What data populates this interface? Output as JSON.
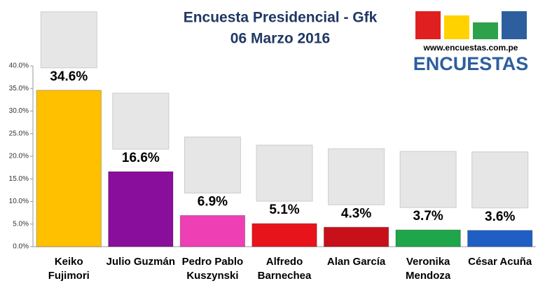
{
  "chart_data": {
    "type": "bar",
    "title": "Encuesta Presidencial - Gfk",
    "subtitle": "06 Marzo 2016",
    "logo": {
      "url": "www.encuestas.com.pe",
      "name": "ENCUESTAS"
    },
    "categories": [
      "Keiko Fujimori",
      "Julio Guzmán",
      "Pedro Pablo Kuszynski",
      "Alfredo Barnechea",
      "Alan García",
      "Veronika Mendoza",
      "César Acuña"
    ],
    "values": [
      34.6,
      16.6,
      6.9,
      5.1,
      4.3,
      3.7,
      3.6
    ],
    "value_labels": [
      "34.6%",
      "16.6%",
      "6.9%",
      "5.1%",
      "4.3%",
      "3.7%",
      "3.6%"
    ],
    "colors": [
      "#ffc000",
      "#8a0e9c",
      "#ee3fb4",
      "#e8141c",
      "#c8101a",
      "#1fa54a",
      "#1f5fc4"
    ],
    "ylim": [
      0,
      40
    ],
    "yticks": [
      {
        "value": 0,
        "label": "0.0%"
      },
      {
        "value": 5,
        "label": "5.0%"
      },
      {
        "value": 10,
        "label": "10.0%"
      },
      {
        "value": 15,
        "label": "15.0%"
      },
      {
        "value": 20,
        "label": "20.0%"
      },
      {
        "value": 25,
        "label": "25.0%"
      },
      {
        "value": 30,
        "label": "30.0%"
      },
      {
        "value": 35,
        "label": "35.0%"
      },
      {
        "value": 40,
        "label": "40.0%"
      }
    ],
    "grid": false
  }
}
